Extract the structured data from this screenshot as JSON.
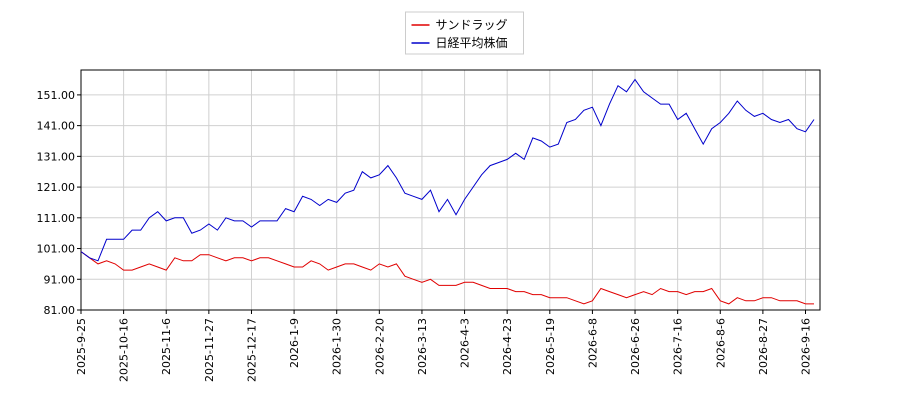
{
  "chart_data": {
    "type": "line",
    "categories": [
      "2025-9-25",
      null,
      null,
      null,
      null,
      "2025-10-16",
      null,
      null,
      null,
      null,
      "2025-11-6",
      null,
      null,
      null,
      null,
      "2025-11-27",
      null,
      null,
      null,
      null,
      "2025-12-17",
      null,
      null,
      null,
      null,
      "2026-1-9",
      null,
      null,
      null,
      null,
      "2026-1-30",
      null,
      null,
      null,
      null,
      "2026-2-20",
      null,
      null,
      null,
      null,
      "2026-3-13",
      null,
      null,
      null,
      null,
      "2026-4-3",
      null,
      null,
      null,
      null,
      "2026-4-23",
      null,
      null,
      null,
      null,
      "2026-5-19",
      null,
      null,
      null,
      null,
      "2026-6-8",
      null,
      null,
      null,
      null,
      "2026-6-26",
      null,
      null,
      null,
      null,
      "2026-7-16",
      null,
      null,
      null,
      null,
      "2026-8-6",
      null,
      null,
      null,
      null,
      "2026-8-27",
      null,
      null,
      null,
      null,
      "2026-9-16",
      null
    ],
    "series": [
      {
        "name": "サンドラッグ",
        "color": "#e00000",
        "values": [
          100,
          98,
          96,
          97,
          96,
          94,
          94,
          95,
          96,
          95,
          94,
          98,
          97,
          97,
          99,
          99,
          98,
          97,
          98,
          98,
          97,
          98,
          98,
          97,
          96,
          95,
          95,
          97,
          96,
          94,
          95,
          96,
          96,
          95,
          94,
          96,
          95,
          96,
          92,
          91,
          90,
          91,
          89,
          89,
          89,
          90,
          90,
          89,
          88,
          88,
          88,
          87,
          87,
          86,
          86,
          85,
          85,
          85,
          84,
          83,
          84,
          88,
          87,
          86,
          85,
          86,
          87,
          86,
          88,
          87,
          87,
          86,
          87,
          87,
          88,
          84,
          83,
          85,
          84,
          84,
          85,
          85,
          84,
          84,
          84,
          83,
          83
        ]
      },
      {
        "name": "日経平均株価",
        "color": "#0000cc",
        "values": [
          100,
          98,
          97,
          104,
          104,
          104,
          107,
          107,
          111,
          113,
          110,
          111,
          111,
          106,
          107,
          109,
          107,
          111,
          110,
          110,
          108,
          110,
          110,
          110,
          114,
          113,
          118,
          117,
          115,
          117,
          116,
          119,
          120,
          126,
          124,
          125,
          128,
          124,
          119,
          118,
          117,
          120,
          113,
          117,
          112,
          117,
          121,
          125,
          128,
          129,
          130,
          132,
          130,
          137,
          136,
          134,
          135,
          142,
          143,
          146,
          147,
          141,
          148,
          154,
          152,
          156,
          152,
          150,
          148,
          148,
          143,
          145,
          140,
          135,
          140,
          142,
          145,
          149,
          146,
          144,
          145,
          143,
          142,
          143,
          140,
          139,
          143
        ]
      }
    ],
    "ylim": [
      81,
      159.1
    ],
    "yticks": [
      {
        "value": 81,
        "label": "81.00"
      },
      {
        "value": 91,
        "label": "91.00"
      },
      {
        "value": 101,
        "label": "101.00"
      },
      {
        "value": 111,
        "label": "111.00"
      },
      {
        "value": 121,
        "label": "121.00"
      },
      {
        "value": 131,
        "label": "131.00"
      },
      {
        "value": 141,
        "label": "141.00"
      },
      {
        "value": 151,
        "label": "151.00"
      }
    ],
    "grid": true,
    "legend": "top"
  }
}
